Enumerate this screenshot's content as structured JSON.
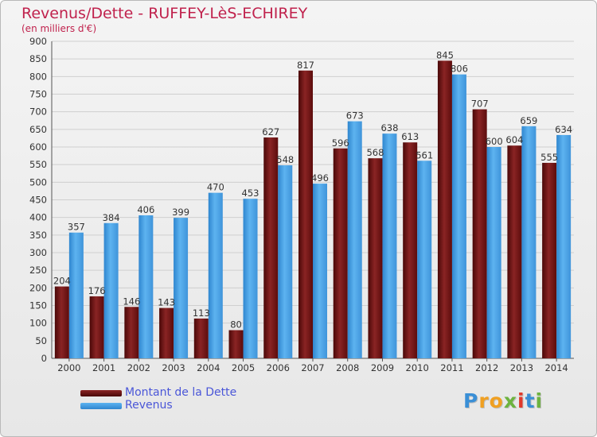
{
  "title": "Revenus/Dette - RUFFEY-LèS-ECHIREY",
  "subtitle": "(en milliers d'€)",
  "chart_data": {
    "type": "bar",
    "categories": [
      "2000",
      "2001",
      "2002",
      "2003",
      "2004",
      "2005",
      "2006",
      "2007",
      "2008",
      "2009",
      "2010",
      "2011",
      "2012",
      "2013",
      "2014"
    ],
    "series": [
      {
        "name": "Montant de la Dette",
        "color": "#7a1b1b",
        "values": [
          204,
          176,
          146,
          143,
          113,
          80,
          627,
          817,
          596,
          568,
          613,
          845,
          707,
          604,
          555
        ]
      },
      {
        "name": "Revenus",
        "color": "#3d9be0",
        "values": [
          357,
          384,
          406,
          399,
          470,
          453,
          548,
          496,
          673,
          638,
          561,
          806,
          600,
          659,
          634
        ]
      }
    ],
    "ylim": [
      0,
      900
    ],
    "yticks": [
      0,
      50,
      100,
      150,
      200,
      250,
      300,
      350,
      400,
      450,
      500,
      550,
      600,
      650,
      700,
      750,
      800,
      850,
      900
    ],
    "grid": true,
    "legend_position": "bottom-left"
  },
  "logo": {
    "letters": [
      {
        "ch": "P",
        "color": "#3a8fd6"
      },
      {
        "ch": "r",
        "color": "#f0a022"
      },
      {
        "ch": "o",
        "color": "#f0a022"
      },
      {
        "ch": "x",
        "color": "#6db33f"
      },
      {
        "ch": "i",
        "color": "#e0392b"
      },
      {
        "ch": "t",
        "color": "#3a8fd6"
      },
      {
        "ch": "i",
        "color": "#6db33f"
      }
    ]
  }
}
